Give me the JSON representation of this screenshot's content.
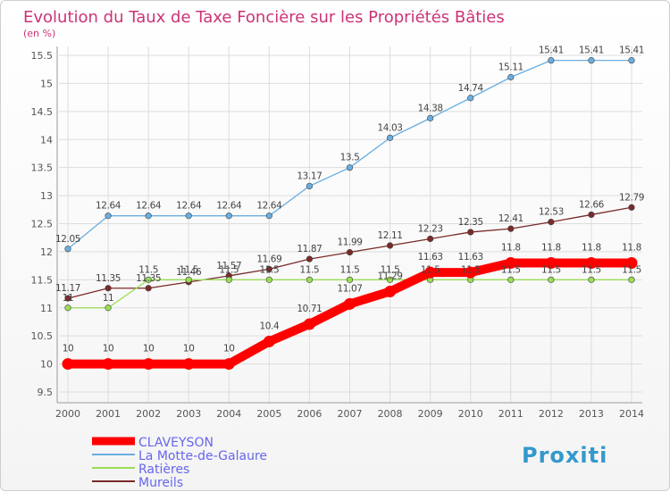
{
  "colors": {
    "title": "#cc3377",
    "axis": "#555555",
    "grid": "#dddddd",
    "legend_text": "#6666ee"
  },
  "logo": {
    "text": "Proxiti"
  },
  "chart_data": {
    "type": "line",
    "title": "Evolution du Taux de Taxe Foncière sur les Propriétés Bâties",
    "subtitle": "(en %)",
    "xlabel": "",
    "ylabel": "",
    "x": [
      "2000",
      "2001",
      "2002",
      "2003",
      "2004",
      "2005",
      "2006",
      "2007",
      "2008",
      "2009",
      "2010",
      "2011",
      "2012",
      "2013",
      "2014"
    ],
    "yticks": [
      "9.5",
      "10",
      "10.5",
      "11",
      "11.5",
      "12",
      "12.5",
      "13",
      "13.5",
      "14",
      "14.5",
      "15",
      "15.5"
    ],
    "ylim": [
      9.5,
      15.5
    ],
    "grid": true,
    "legend_position": "bottom-left",
    "series": [
      {
        "name": "CLAVEYSON",
        "color": "#ff0000",
        "values": [
          10,
          10,
          10,
          10,
          10,
          10.4,
          10.71,
          11.07,
          11.29,
          11.63,
          11.63,
          11.8,
          11.8,
          11.8,
          11.8
        ],
        "labels": [
          "10",
          "10",
          "10",
          "10",
          "10",
          "10.4",
          "10.71",
          "11.07",
          "11.29",
          "11.63",
          "11.63",
          "11.8",
          "11.8",
          "11.8",
          "11.8"
        ]
      },
      {
        "name": "La Motte-de-Galaure",
        "color": "#6aaee0",
        "values": [
          12.05,
          12.64,
          12.64,
          12.64,
          12.64,
          12.64,
          13.17,
          13.5,
          14.03,
          14.38,
          14.74,
          15.11,
          15.41,
          15.41,
          15.41
        ],
        "labels": [
          "12.05",
          "12.64",
          "12.64",
          "12.64",
          "12.64",
          "12.64",
          "13.17",
          "13.5",
          "14.03",
          "14.38",
          "14.74",
          "15.11",
          "15.41",
          "15.41",
          "15.41"
        ]
      },
      {
        "name": "Ratières",
        "color": "#99dd55",
        "values": [
          11,
          11,
          11.5,
          11.5,
          11.5,
          11.5,
          11.5,
          11.5,
          11.5,
          11.5,
          11.5,
          11.5,
          11.5,
          11.5,
          11.5
        ],
        "labels": [
          "11",
          "11",
          "11.5",
          "11.5",
          "11.5",
          "11.5",
          "11.5",
          "11.5",
          "11.5",
          "11.5",
          "11.5",
          "11.5",
          "11.5",
          "11.5",
          "11.5"
        ]
      },
      {
        "name": "Mureils",
        "color": "#7a2a2a",
        "values": [
          11.17,
          11.35,
          11.35,
          11.46,
          11.57,
          11.69,
          11.87,
          11.99,
          12.11,
          12.23,
          12.35,
          12.41,
          12.53,
          12.66,
          12.79
        ],
        "labels": [
          "11.17",
          "11.35",
          "11.35",
          "11.46",
          "11.57",
          "11.69",
          "11.87",
          "11.99",
          "12.11",
          "12.23",
          "12.35",
          "12.41",
          "12.53",
          "12.66",
          "12.79"
        ]
      }
    ]
  }
}
